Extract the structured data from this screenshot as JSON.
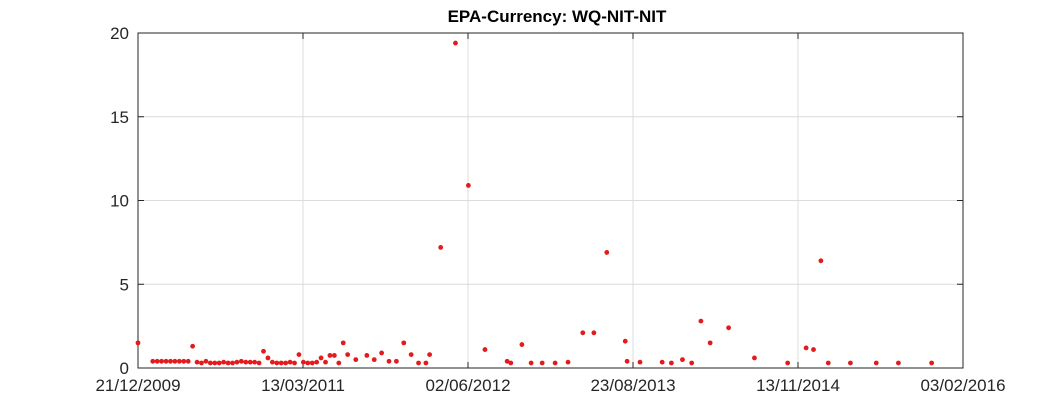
{
  "chart_data": {
    "type": "scatter",
    "title": "EPA-Currency: WQ-NIT-NIT",
    "xlabel": "",
    "ylabel": "",
    "x_axis_type": "date",
    "x_ticks": [
      "21/12/2009",
      "13/03/2011",
      "02/06/2012",
      "23/08/2013",
      "13/11/2014",
      "03/02/2016"
    ],
    "y_ticks": [
      0,
      5,
      10,
      15,
      20
    ],
    "ylim": [
      0,
      20
    ],
    "grid": true,
    "color": "#e41a1c",
    "x_days": [
      0,
      40,
      52,
      64,
      76,
      88,
      100,
      112,
      124,
      136,
      148,
      160,
      172,
      184,
      196,
      208,
      220,
      232,
      244,
      256,
      268,
      280,
      292,
      304,
      316,
      328,
      340,
      352,
      364,
      376,
      388,
      400,
      412,
      424,
      436,
      448,
      460,
      472,
      484,
      496,
      508,
      520,
      532,
      544,
      556,
      568,
      590,
      620,
      640,
      660,
      680,
      700,
      720,
      740,
      760,
      780,
      790,
      820,
      860,
      895,
      940,
      1000,
      1010,
      1040,
      1065,
      1095,
      1130,
      1165,
      1205,
      1235,
      1270,
      1320,
      1325,
      1360,
      1420,
      1445,
      1475,
      1500,
      1525,
      1550,
      1600,
      1670,
      1760,
      1810,
      1830,
      1850,
      1870,
      1930,
      2000,
      2060,
      2150
    ],
    "values": [
      1.5,
      0.4,
      0.4,
      0.4,
      0.4,
      0.4,
      0.4,
      0.4,
      0.4,
      0.4,
      1.3,
      0.35,
      0.3,
      0.4,
      0.3,
      0.3,
      0.3,
      0.35,
      0.3,
      0.3,
      0.35,
      0.4,
      0.35,
      0.35,
      0.35,
      0.3,
      1.0,
      0.6,
      0.35,
      0.3,
      0.3,
      0.3,
      0.35,
      0.3,
      0.8,
      0.35,
      0.3,
      0.3,
      0.35,
      0.6,
      0.35,
      0.75,
      0.75,
      0.3,
      1.5,
      0.8,
      0.5,
      0.75,
      0.5,
      0.9,
      0.4,
      0.4,
      1.5,
      0.8,
      0.3,
      0.3,
      0.8,
      7.2,
      19.4,
      10.9,
      1.1,
      0.4,
      0.3,
      1.4,
      0.3,
      0.3,
      0.3,
      0.35,
      2.1,
      2.1,
      6.9,
      1.6,
      0.4,
      0.35,
      0.35,
      0.3,
      0.5,
      0.3,
      2.8,
      1.5,
      2.4,
      0.6,
      0.3,
      1.2,
      1.1,
      6.4,
      0.3,
      0.3,
      0.3,
      0.3,
      0.3
    ]
  }
}
